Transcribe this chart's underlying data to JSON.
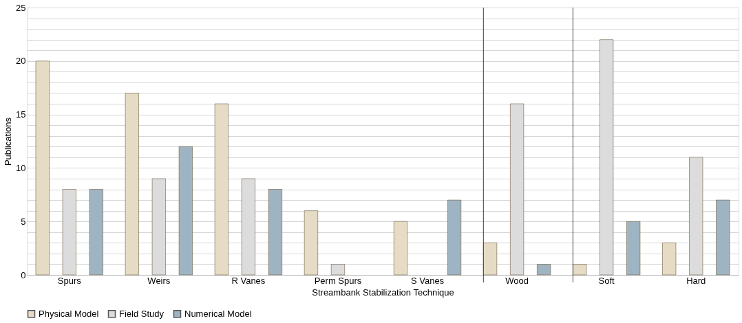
{
  "chart_data": {
    "type": "bar",
    "xlabel": "Streambank Stabilization Technique",
    "ylabel": "Publications",
    "categories": [
      "Spurs",
      "Weirs",
      "R Vanes",
      "Perm Spurs",
      "S Vanes",
      "Wood",
      "Soft",
      "Hard"
    ],
    "series": [
      {
        "name": "Physical Model",
        "color": "#e6dcc6",
        "values": [
          20,
          17,
          16,
          6,
          5,
          3,
          1,
          3
        ]
      },
      {
        "name": "Field Study",
        "color": "#dcdcdc",
        "values": [
          8,
          9,
          9,
          1,
          null,
          16,
          22,
          11
        ]
      },
      {
        "name": "Numerical Model",
        "color": "#9fb4c2",
        "values": [
          8,
          12,
          8,
          null,
          7,
          1,
          5,
          7
        ]
      }
    ],
    "ylim": [
      0,
      25
    ],
    "yticks": [
      0,
      {
        "value": 1,
        "label": null
      },
      {
        "value": 2,
        "label": null
      },
      {
        "value": 3,
        "label": null
      },
      {
        "value": 4,
        "label": null
      },
      5,
      {
        "value": 6,
        "label": null
      },
      {
        "value": 7,
        "label": null
      },
      {
        "value": 8,
        "label": null
      },
      {
        "value": 9,
        "label": null
      },
      10,
      {
        "value": 11,
        "label": null
      },
      {
        "value": 12,
        "label": null
      },
      {
        "value": 13,
        "label": null
      },
      {
        "value": 14,
        "label": null
      },
      15,
      {
        "value": 16,
        "label": null
      },
      {
        "value": 17,
        "label": null
      },
      {
        "value": 18,
        "label": null
      },
      {
        "value": 19,
        "label": null
      },
      20,
      {
        "value": 21,
        "label": null
      },
      {
        "value": 22,
        "label": null
      },
      {
        "value": 23,
        "label": null
      },
      {
        "value": 24,
        "label": null
      },
      25
    ],
    "ref_lines": [
      {
        "axis": "x",
        "value": "Wood",
        "color": "#404040"
      },
      {
        "axis": "x",
        "value": "Soft",
        "color": "#404040"
      }
    ],
    "grid": "y",
    "legend": "bottom"
  }
}
